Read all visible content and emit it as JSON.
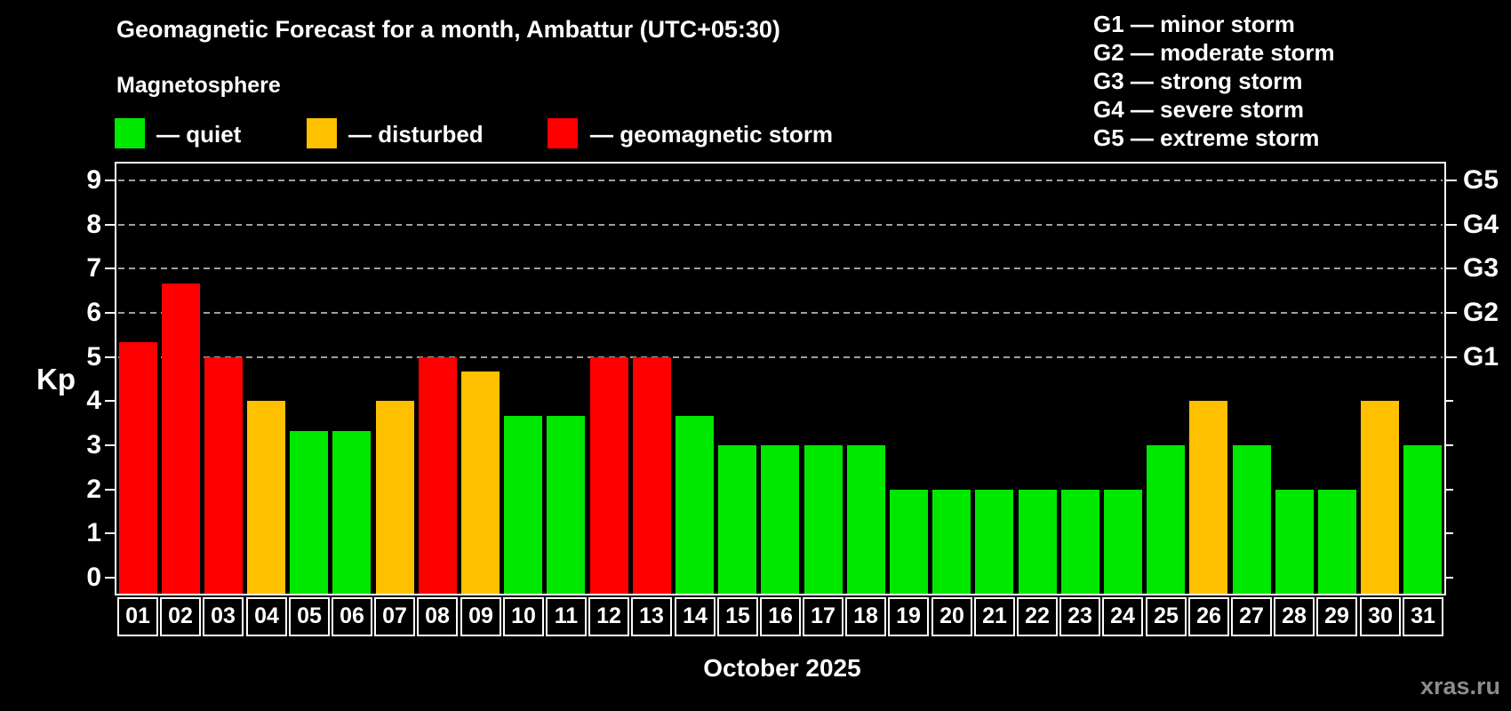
{
  "header": {
    "title": "Geomagnetic Forecast for a month, Ambattur (UTC+05:30)",
    "subtitle": "Magnetosphere"
  },
  "legend": {
    "items": [
      {
        "key": "quiet",
        "label": "— quiet",
        "color": "#00e800"
      },
      {
        "key": "disturbed",
        "label": "— disturbed",
        "color": "#ffc000"
      },
      {
        "key": "storm",
        "label": "— geomagnetic storm",
        "color": "#ff0000"
      }
    ]
  },
  "g_legend": {
    "items": [
      "G1 — minor storm",
      "G2 — moderate storm",
      "G3 — strong storm",
      "G4 — severe storm",
      "G5 — extreme storm"
    ]
  },
  "axes": {
    "y_label": "Kp",
    "y_ticks": [
      "0",
      "1",
      "2",
      "3",
      "4",
      "5",
      "6",
      "7",
      "8",
      "9"
    ],
    "g_labels": [
      {
        "kp": 5,
        "text": "G1"
      },
      {
        "kp": 6,
        "text": "G2"
      },
      {
        "kp": 7,
        "text": "G3"
      },
      {
        "kp": 8,
        "text": "G4"
      },
      {
        "kp": 9,
        "text": "G5"
      }
    ],
    "x_label": "October 2025"
  },
  "watermark": "xras.ru",
  "colors": {
    "background": "#000000",
    "quiet": "#00e800",
    "disturbed": "#ffc000",
    "storm": "#ff0000",
    "grid": "#a0a0a0",
    "frame": "#ffffff",
    "text": "#ffffff",
    "watermark": "#8c8c8c"
  },
  "chart_data": {
    "type": "bar",
    "title": "Geomagnetic Forecast for a month, Ambattur (UTC+05:30)",
    "subtitle": "Magnetosphere",
    "xlabel": "October 2025",
    "ylabel": "Kp",
    "ylim": [
      0,
      9
    ],
    "y_ticks": [
      0,
      1,
      2,
      3,
      4,
      5,
      6,
      7,
      8,
      9
    ],
    "gridlines_at": [
      5,
      6,
      7,
      8,
      9
    ],
    "grid_style": "dashed horizontal gray lines at storm levels G1–G5",
    "legend_position": "top-left",
    "right_axis": {
      "G1": 5,
      "G2": 6,
      "G3": 7,
      "G4": 8,
      "G5": 9
    },
    "categories": [
      "01",
      "02",
      "03",
      "04",
      "05",
      "06",
      "07",
      "08",
      "09",
      "10",
      "11",
      "12",
      "13",
      "14",
      "15",
      "16",
      "17",
      "18",
      "19",
      "20",
      "21",
      "22",
      "23",
      "24",
      "25",
      "26",
      "27",
      "28",
      "29",
      "30",
      "31"
    ],
    "values": [
      5.33,
      6.67,
      5,
      4,
      3.33,
      3.33,
      4,
      5,
      4.67,
      3.67,
      3.67,
      5,
      5,
      3.67,
      3,
      3,
      3,
      3,
      2,
      2,
      2,
      2,
      2,
      2,
      3,
      4,
      3,
      2,
      2,
      4,
      3
    ],
    "levels": [
      "storm",
      "storm",
      "storm",
      "disturbed",
      "quiet",
      "quiet",
      "disturbed",
      "storm",
      "disturbed",
      "quiet",
      "quiet",
      "storm",
      "storm",
      "quiet",
      "quiet",
      "quiet",
      "quiet",
      "quiet",
      "quiet",
      "quiet",
      "quiet",
      "quiet",
      "quiet",
      "quiet",
      "quiet",
      "disturbed",
      "quiet",
      "quiet",
      "quiet",
      "disturbed",
      "quiet"
    ]
  }
}
